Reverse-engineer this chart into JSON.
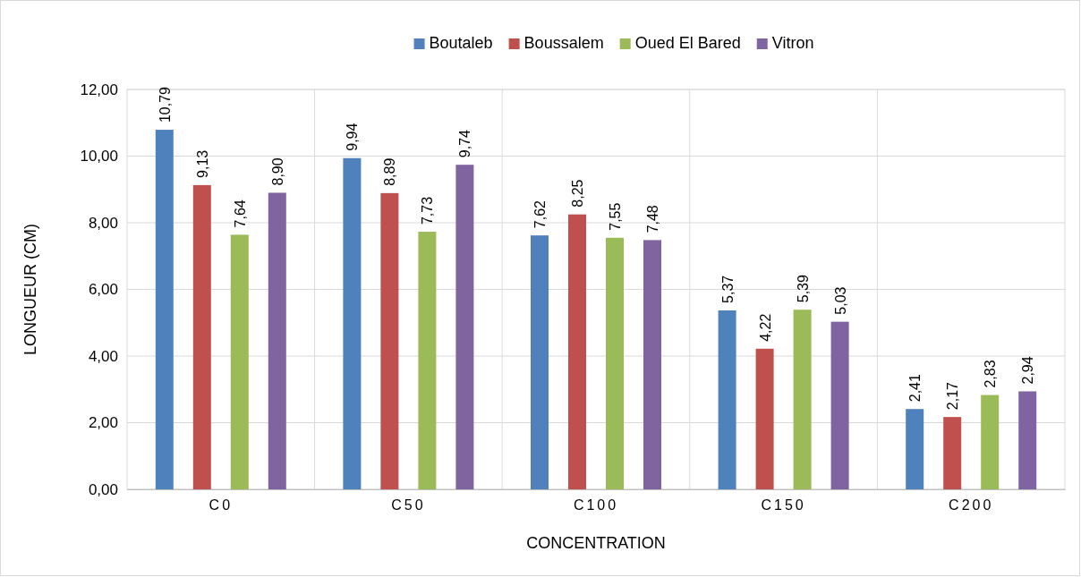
{
  "chart_data": {
    "type": "bar",
    "xlabel": "CONCENTRATION",
    "ylabel": "LONGUEUR (CM)",
    "categories": [
      "C0",
      "C50",
      "C100",
      "C150",
      "C200"
    ],
    "series": [
      {
        "name": "Boutaleb",
        "color": "#4f81bd",
        "values": [
          10.79,
          9.94,
          7.62,
          5.37,
          2.41
        ],
        "value_labels": [
          "10,79",
          "9,94",
          "7,62",
          "5,37",
          "2,41"
        ]
      },
      {
        "name": "Boussalem",
        "color": "#c0504d",
        "values": [
          9.13,
          8.89,
          8.25,
          4.22,
          2.17
        ],
        "value_labels": [
          "9,13",
          "8,89",
          "8,25",
          "4,22",
          "2,17"
        ]
      },
      {
        "name": "Oued El Bared",
        "color": "#9bbb59",
        "values": [
          7.64,
          7.73,
          7.55,
          5.39,
          2.83
        ],
        "value_labels": [
          "7,64",
          "7,73",
          "7,55",
          "5,39",
          "2,83"
        ]
      },
      {
        "name": "Vitron",
        "color": "#8064a2",
        "values": [
          8.9,
          9.74,
          7.48,
          5.03,
          2.94
        ],
        "value_labels": [
          "8,90",
          "9,74",
          "7,48",
          "5,03",
          "2,94"
        ]
      }
    ],
    "ylim": [
      0,
      12
    ],
    "yticks": [
      {
        "value": 0,
        "label": "0,00"
      },
      {
        "value": 2,
        "label": "2,00"
      },
      {
        "value": 4,
        "label": "4,00"
      },
      {
        "value": 6,
        "label": "6,00"
      },
      {
        "value": 8,
        "label": "8,00"
      },
      {
        "value": 10,
        "label": "10,00"
      },
      {
        "value": 12,
        "label": "12,00"
      }
    ],
    "grid": true,
    "legend": "top"
  }
}
